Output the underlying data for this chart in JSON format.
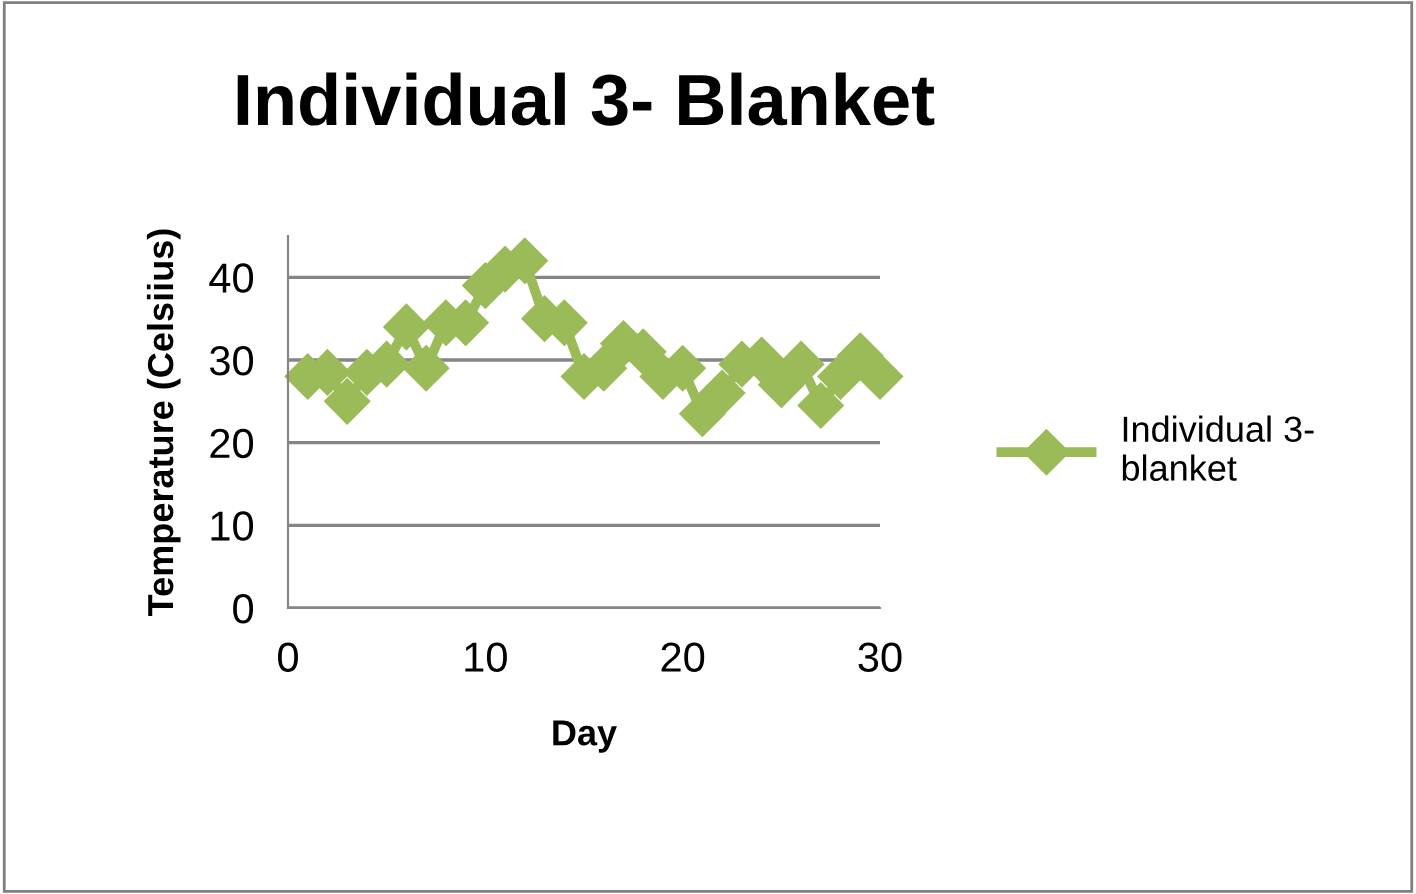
{
  "chart_data": {
    "type": "line",
    "title": "Individual 3- Blanket",
    "xlabel": "Day",
    "ylabel": "Temperature (Celsiius)",
    "x": [
      1,
      2,
      3,
      4,
      5,
      6,
      7,
      8,
      9,
      10,
      11,
      12,
      13,
      14,
      15,
      16,
      17,
      18,
      19,
      20,
      21,
      22,
      23,
      24,
      25,
      26,
      27,
      28,
      29,
      30
    ],
    "series": [
      {
        "name": "Individual 3-\nblanket",
        "color": "#9bbb59",
        "values": [
          28,
          28.5,
          25,
          28.5,
          29.5,
          34,
          29,
          34.5,
          34.5,
          39,
          41,
          42,
          35,
          34.5,
          28,
          29,
          32,
          31,
          28,
          29,
          23.5,
          26,
          29.5,
          30,
          27,
          29.5,
          24.5,
          28,
          30.5,
          28
        ]
      }
    ],
    "xlim": [
      0,
      30
    ],
    "xticks": [
      0,
      10,
      20,
      30
    ],
    "ylim": [
      0,
      45
    ],
    "yticks": [
      0,
      10,
      20,
      30,
      40
    ],
    "grid": "y",
    "legend": "right",
    "marker": "diamond",
    "line_style": "solid"
  }
}
